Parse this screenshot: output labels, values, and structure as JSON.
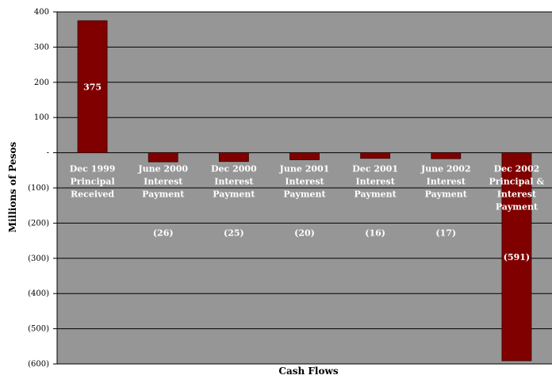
{
  "chart_data": {
    "type": "bar",
    "xlabel": "Cash Flows",
    "ylabel": "Millions of Pesos",
    "ylim": [
      -600,
      400
    ],
    "yticks": [
      400,
      300,
      200,
      100,
      0,
      -100,
      -200,
      -300,
      -400,
      -500,
      -600
    ],
    "ytick_labels": [
      "400",
      "300",
      "200",
      "100",
      "-",
      "(100)",
      "(200)",
      "(300)",
      "(400)",
      "(500)",
      "(600)"
    ],
    "grid": true,
    "categories": [
      [
        "Dec 1999",
        "Principal",
        "Received"
      ],
      [
        "June 2000",
        "Interest",
        "Payment"
      ],
      [
        "Dec 2000",
        "Interest",
        "Payment"
      ],
      [
        "June 2001",
        "Interest",
        "Payment"
      ],
      [
        "Dec 2001",
        "Interest",
        "Payment"
      ],
      [
        "June 2002",
        "Interest",
        "Payment"
      ],
      [
        "Dec 2002",
        "Principal &",
        "Interest",
        "Payment"
      ]
    ],
    "values": [
      375,
      -26,
      -25,
      -20,
      -16,
      -17,
      -591
    ],
    "data_labels": [
      "375",
      "(26)",
      "(25)",
      "(20)",
      "(16)",
      "(17)",
      "(591)"
    ],
    "colors": {
      "plot_bg": "#969696",
      "bar": "#800000",
      "bar_stroke": "#330000",
      "grid": "#000000",
      "label_text": "#ffffff"
    }
  }
}
